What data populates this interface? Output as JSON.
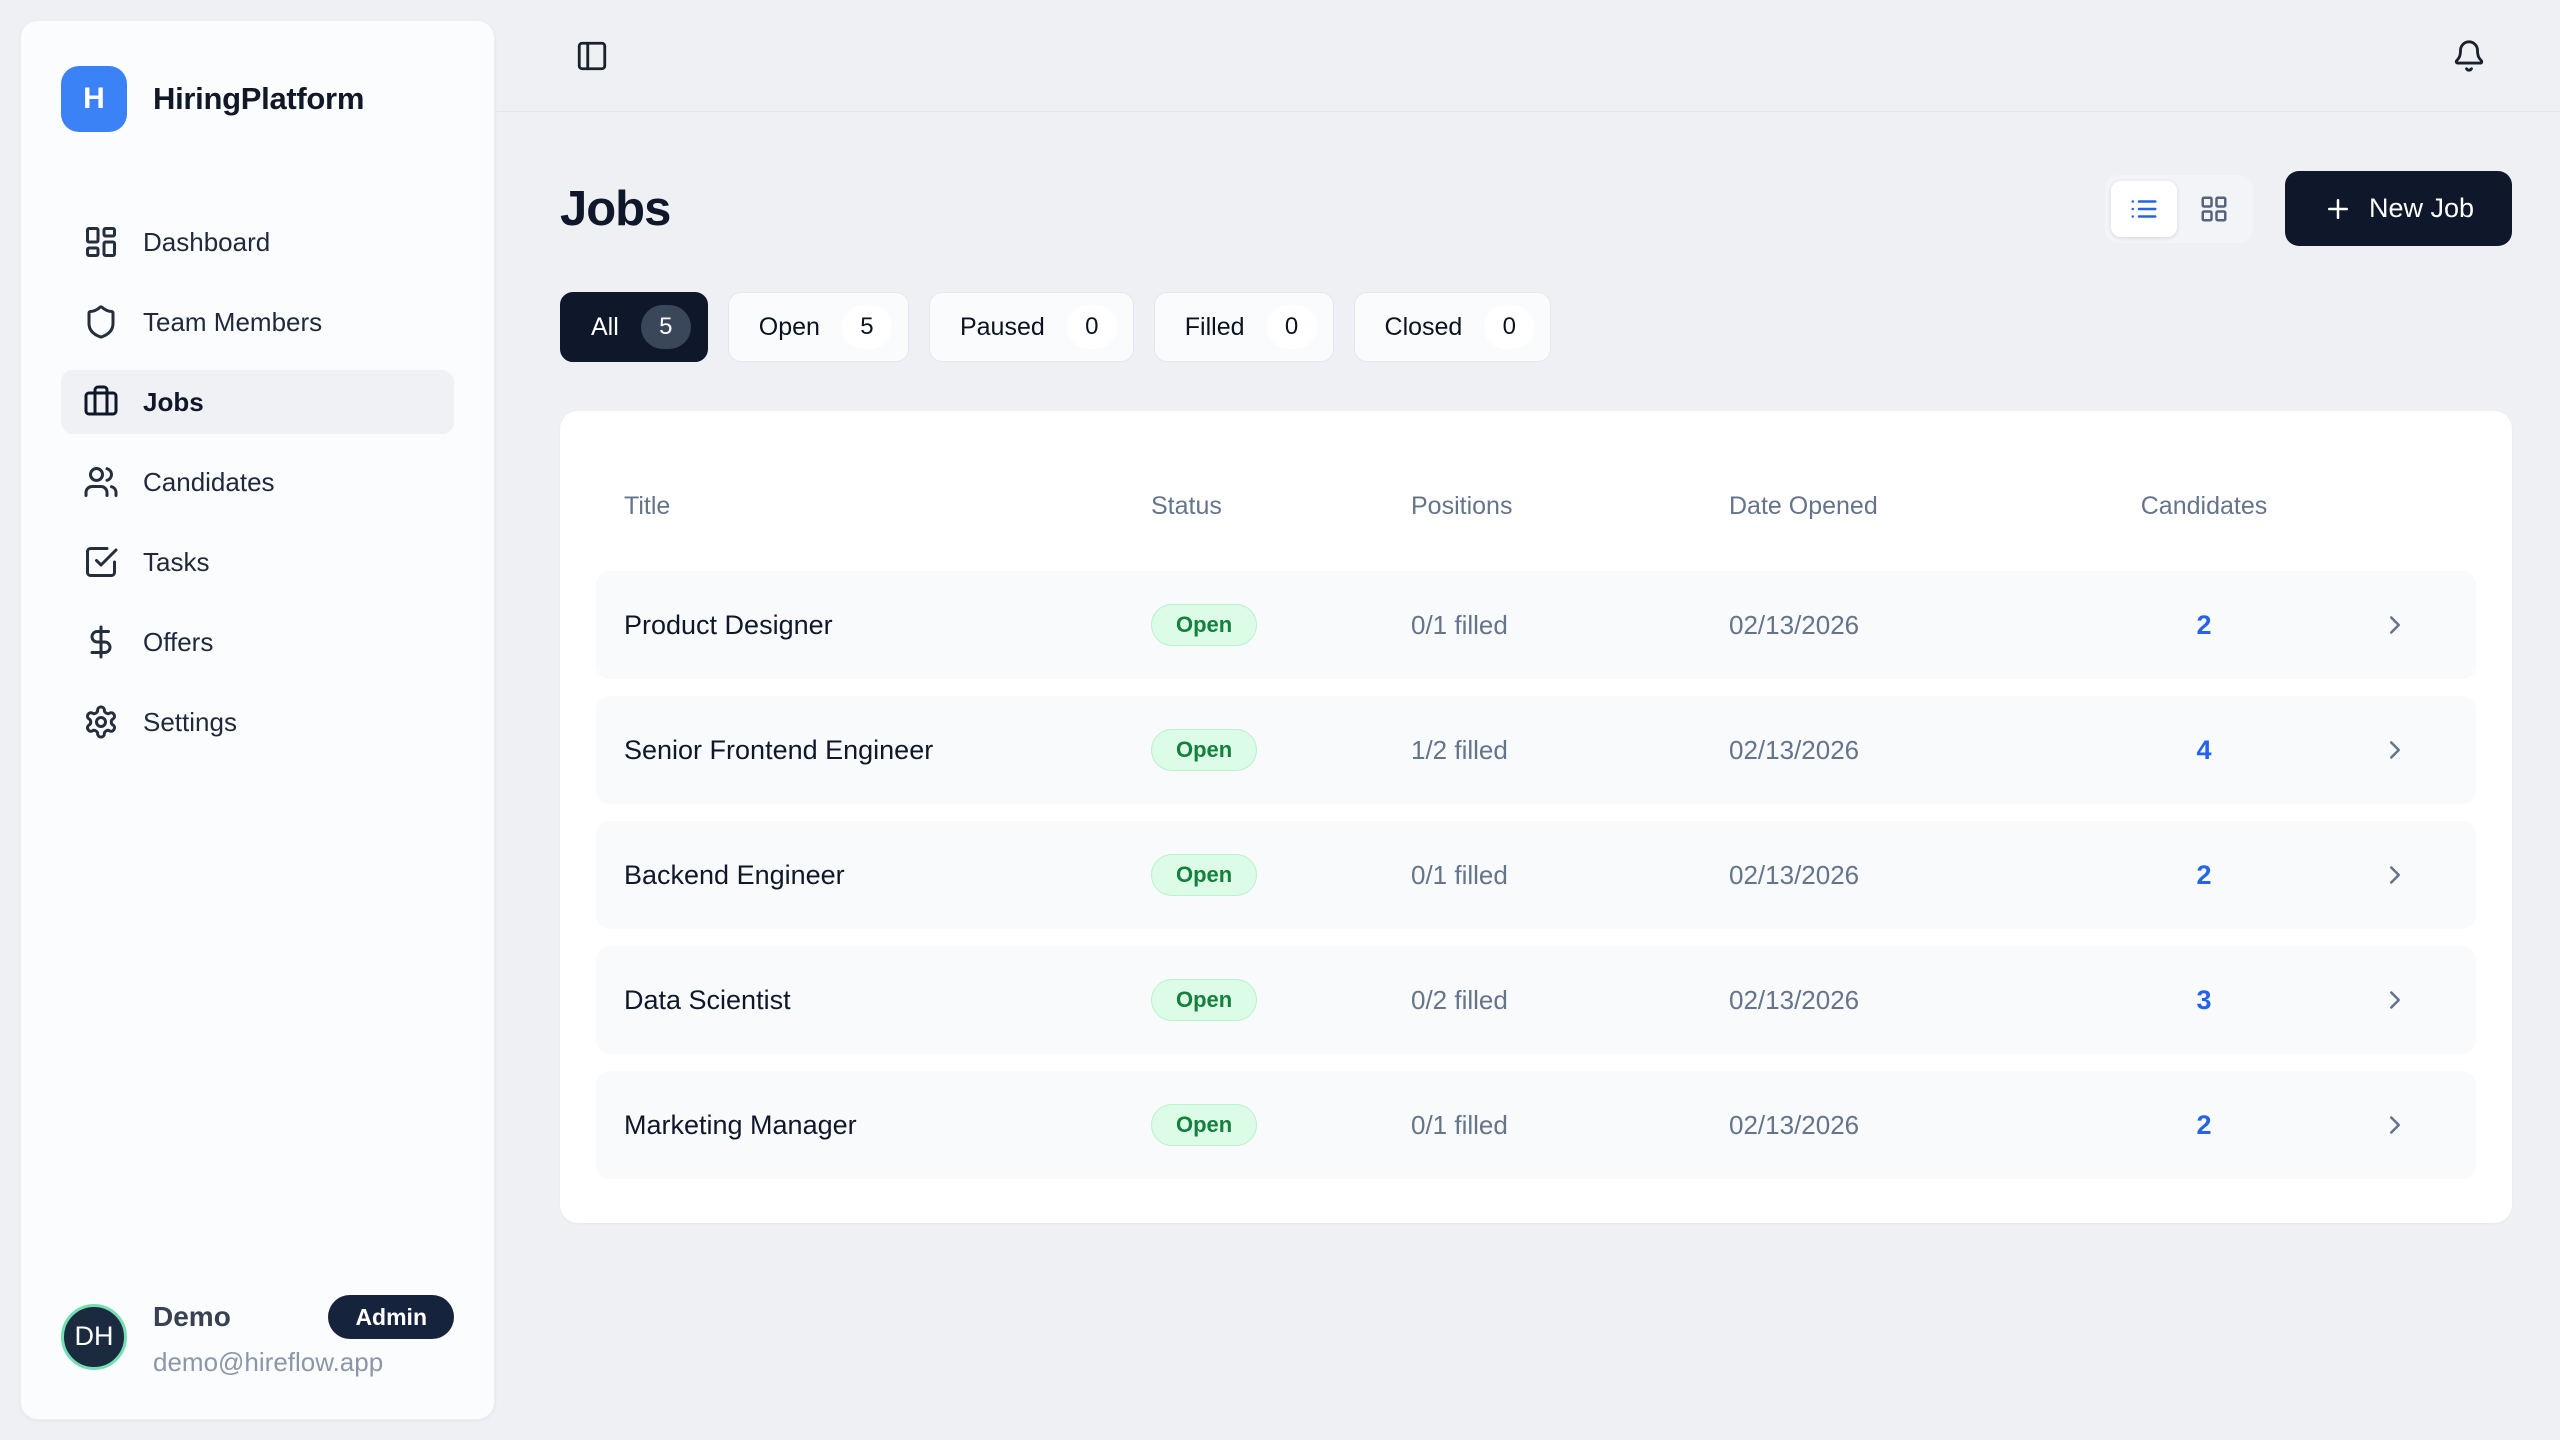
{
  "brand": {
    "name": "HiringPlatform",
    "logo_letter": "H"
  },
  "topbar": {
    "sidebar_toggle_icon": "panel-left-icon",
    "notifications_icon": "bell-icon"
  },
  "sidebar": {
    "items": [
      {
        "label": "Dashboard",
        "icon": "dashboard-icon",
        "active": false
      },
      {
        "label": "Team Members",
        "icon": "shield-icon",
        "active": false
      },
      {
        "label": "Jobs",
        "icon": "briefcase-icon",
        "active": true
      },
      {
        "label": "Candidates",
        "icon": "users-icon",
        "active": false
      },
      {
        "label": "Tasks",
        "icon": "task-check-icon",
        "active": false
      },
      {
        "label": "Offers",
        "icon": "dollar-icon",
        "active": false
      },
      {
        "label": "Settings",
        "icon": "gear-icon",
        "active": false
      }
    ],
    "user": {
      "initials": "DH",
      "name": "Demo",
      "role_badge": "Admin",
      "email": "demo@hireflow.app"
    }
  },
  "page": {
    "title": "Jobs",
    "view_toggle": {
      "active": "list",
      "options": [
        "list",
        "grid"
      ]
    },
    "new_job_button": {
      "label": "New Job",
      "icon": "plus-icon"
    },
    "filters": [
      {
        "label": "All",
        "count": "5",
        "active": true
      },
      {
        "label": "Open",
        "count": "5",
        "active": false
      },
      {
        "label": "Paused",
        "count": "0",
        "active": false
      },
      {
        "label": "Filled",
        "count": "0",
        "active": false
      },
      {
        "label": "Closed",
        "count": "0",
        "active": false
      }
    ]
  },
  "table": {
    "headers": [
      "Title",
      "Status",
      "Positions",
      "Date Opened",
      "Candidates"
    ],
    "rows": [
      {
        "title": "Product Designer",
        "status": "Open",
        "positions": "0/1 filled",
        "date_opened": "02/13/2026",
        "candidates": "2"
      },
      {
        "title": "Senior Frontend Engineer",
        "status": "Open",
        "positions": "1/2 filled",
        "date_opened": "02/13/2026",
        "candidates": "4"
      },
      {
        "title": "Backend Engineer",
        "status": "Open",
        "positions": "0/1 filled",
        "date_opened": "02/13/2026",
        "candidates": "2"
      },
      {
        "title": "Data Scientist",
        "status": "Open",
        "positions": "0/2 filled",
        "date_opened": "02/13/2026",
        "candidates": "3"
      },
      {
        "title": "Marketing Manager",
        "status": "Open",
        "positions": "0/1 filled",
        "date_opened": "02/13/2026",
        "candidates": "2"
      }
    ]
  },
  "colors": {
    "page_background": "#eef0f4",
    "brand_blue": "#3b82f6",
    "dark_navy": "#0f172a",
    "accent_blue": "#2563eb",
    "open_badge_bg": "#dcfce7",
    "open_badge_text": "#15803d",
    "muted_text": "#64748b",
    "row_background": "#f8fafc",
    "avatar_ring_green": "#74dfb3"
  }
}
